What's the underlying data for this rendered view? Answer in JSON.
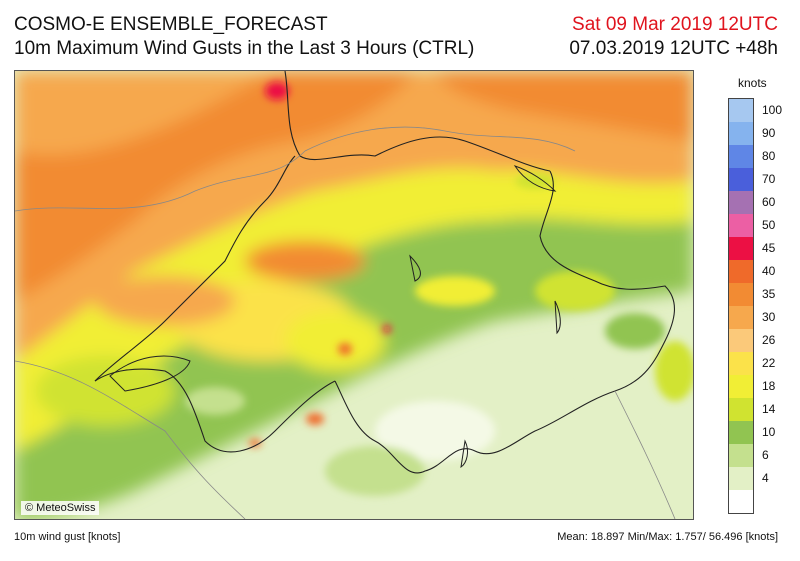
{
  "header": {
    "title": "COSMO-E ENSEMBLE_FORECAST",
    "subtitle": "10m Maximum Wind Gusts in the Last 3 Hours (CTRL)",
    "valid_time": "Sat 09 Mar 2019 12UTC",
    "run_time": "07.03.2019 12UTC +48h"
  },
  "map": {
    "copyright": "© MeteoSwiss",
    "variable": "10m wind gust",
    "unit": "knots"
  },
  "legend": {
    "unit": "knots",
    "bins": [
      {
        "label": "100",
        "color": "#a6c8f0"
      },
      {
        "label": "90",
        "color": "#85b3ee"
      },
      {
        "label": "80",
        "color": "#5f86e6"
      },
      {
        "label": "70",
        "color": "#4a5fdb"
      },
      {
        "label": "60",
        "color": "#a571b2"
      },
      {
        "label": "50",
        "color": "#ec5fa4"
      },
      {
        "label": "45",
        "color": "#ec1044"
      },
      {
        "label": "40",
        "color": "#ef6a2a"
      },
      {
        "label": "35",
        "color": "#f28b33"
      },
      {
        "label": "30",
        "color": "#f6a84d"
      },
      {
        "label": "26",
        "color": "#fbc97a"
      },
      {
        "label": "22",
        "color": "#fbe24a"
      },
      {
        "label": "18",
        "color": "#f1ee35"
      },
      {
        "label": "14",
        "color": "#d0e330"
      },
      {
        "label": "10",
        "color": "#91c451"
      },
      {
        "label": "6",
        "color": "#c4e08e"
      },
      {
        "label": "4",
        "color": "#e3f0c6"
      },
      {
        "label": "",
        "color": "#ffffff"
      }
    ]
  },
  "footer": {
    "left": "10m wind gust [knots]",
    "right": "Mean:  18.897 Min/Max:   1.757/ 56.496 [knots]"
  }
}
